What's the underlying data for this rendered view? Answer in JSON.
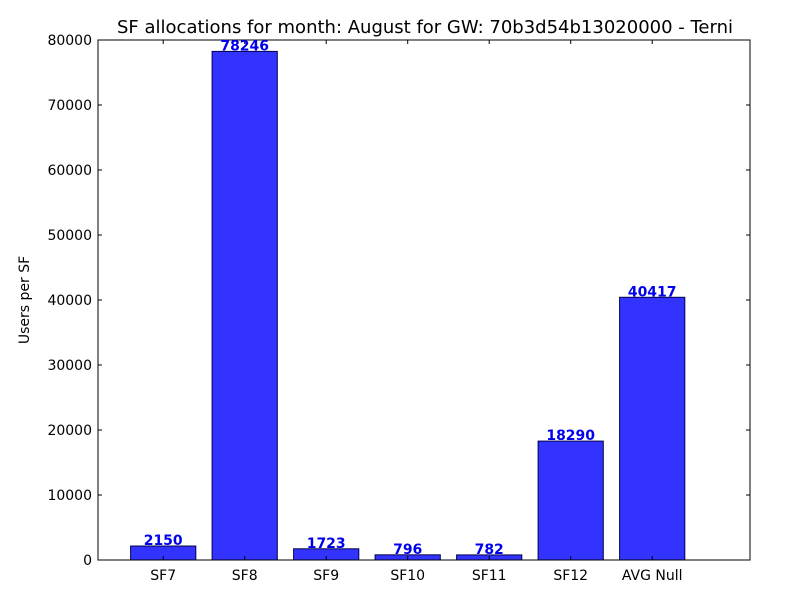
{
  "chart_data": {
    "type": "bar",
    "title": "SF allocations for month: August for GW: 70b3d54b13020000 - Terni",
    "xlabel": "",
    "ylabel": "Users per SF",
    "categories": [
      "SF7",
      "SF8",
      "SF9",
      "SF10",
      "SF11",
      "SF12",
      "AVG Null"
    ],
    "values": [
      2150,
      78246,
      1723,
      796,
      782,
      18290,
      40417
    ],
    "ylim": [
      0,
      80000
    ],
    "yticks": [
      0,
      10000,
      20000,
      30000,
      40000,
      50000,
      60000,
      70000,
      80000
    ],
    "ytick_labels": [
      "0",
      "10000",
      "20000",
      "30000",
      "40000",
      "50000",
      "60000",
      "70000",
      "80000"
    ],
    "grid": false,
    "bar_color": "#3333ff",
    "bar_edge_color": "#00004d",
    "data_label_color": "#0000ee"
  }
}
